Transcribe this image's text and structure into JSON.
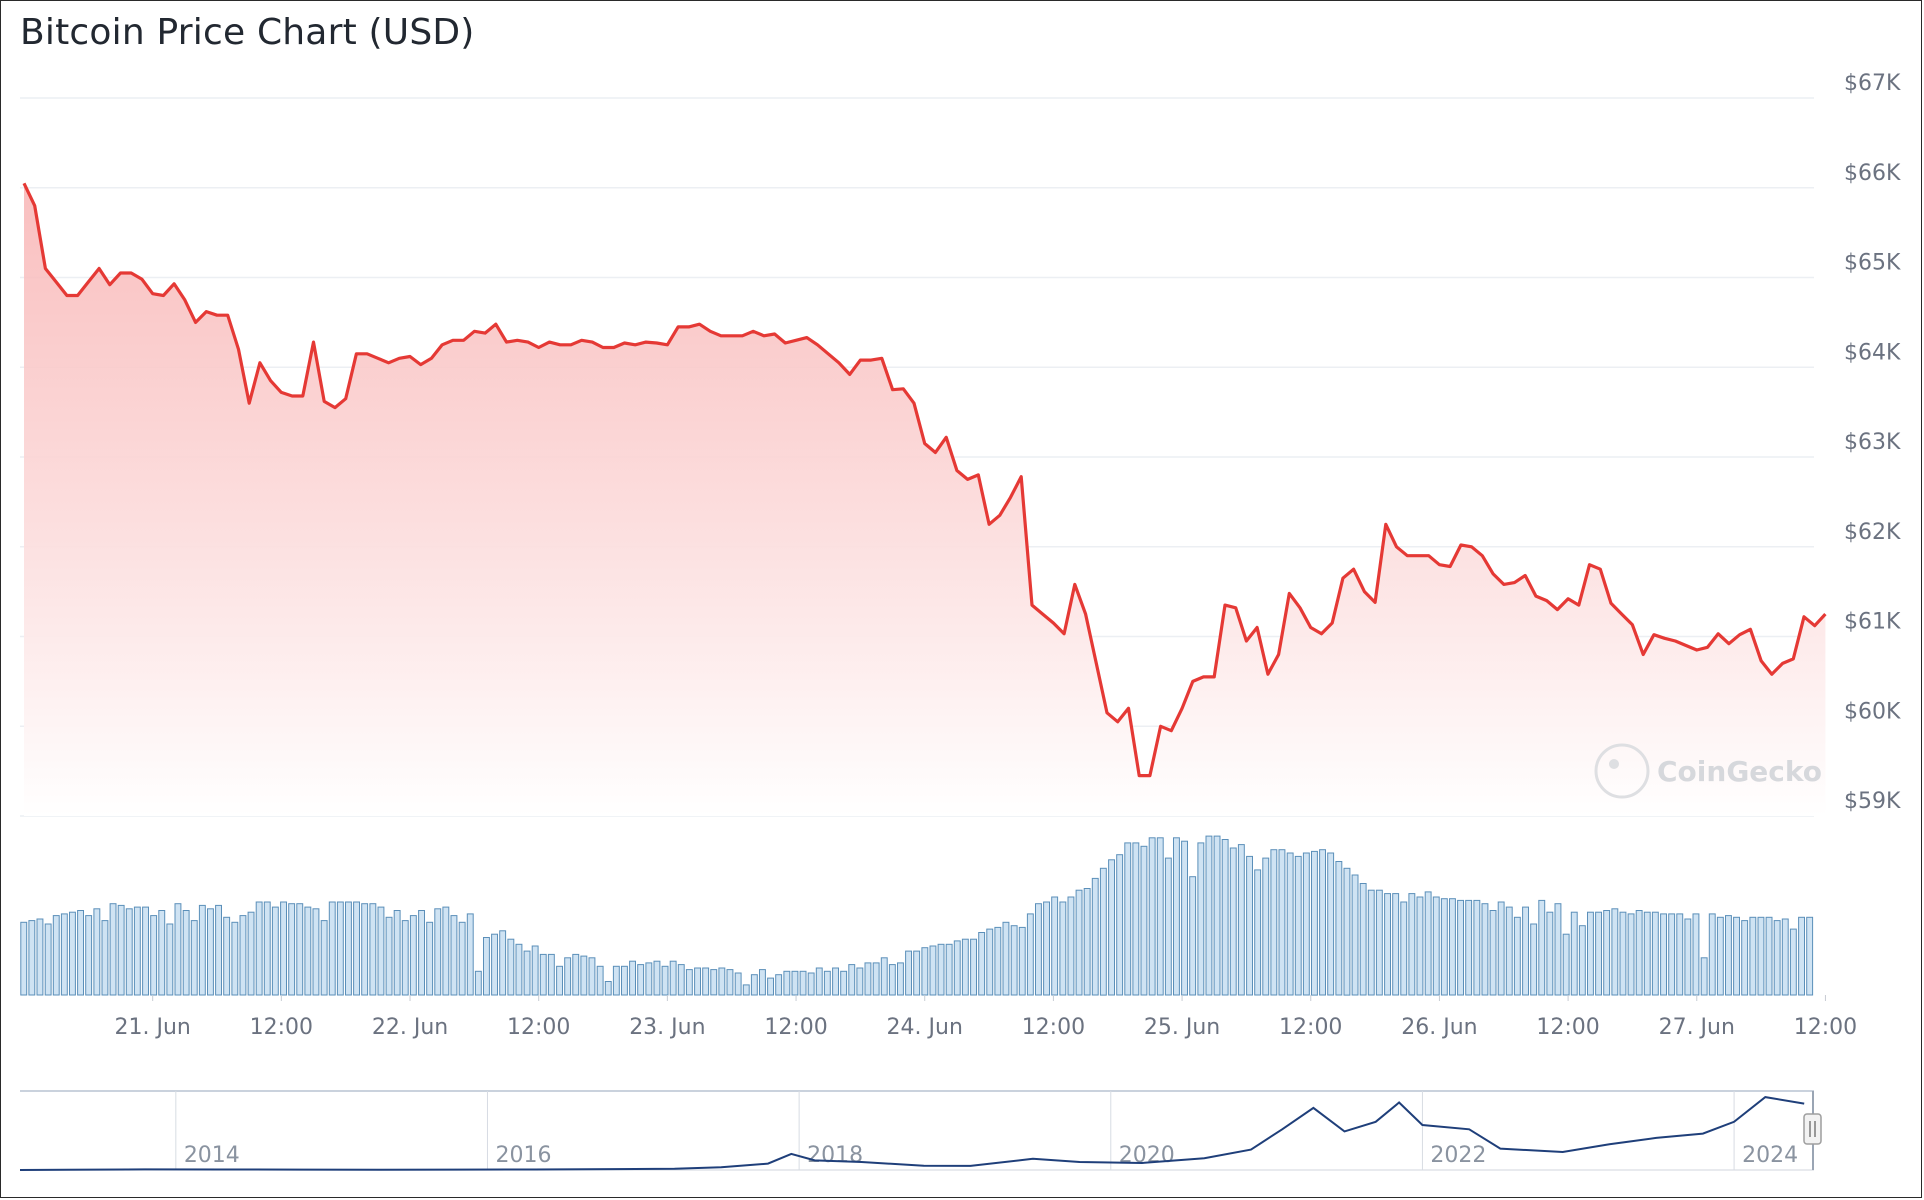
{
  "title": "Bitcoin Price Chart (USD)",
  "watermark": "CoinGecko",
  "colors": {
    "line": "#e53935",
    "area_top": "#f8b4b4",
    "area_bottom": "#ffffff",
    "volume_fill": "#cfe3f3",
    "volume_stroke": "#5b8fb9",
    "grid": "#eceff3",
    "axis_text": "#6b7280",
    "navigator_line": "#1f3f7a"
  },
  "chart_data": [
    {
      "type": "area",
      "title": "Bitcoin Price Chart (USD)",
      "ylabel": "",
      "xlabel": "",
      "y_axis_position": "right",
      "ylim": [
        59000,
        67000
      ],
      "yticks": [
        "$59K",
        "$60K",
        "$61K",
        "$62K",
        "$63K",
        "$64K",
        "$65K",
        "$66K",
        "$67K"
      ],
      "xlim_hours": [
        0,
        166
      ],
      "xticks": [
        {
          "label": "21. Jun",
          "hour": 12
        },
        {
          "label": "12:00",
          "hour": 24
        },
        {
          "label": "22. Jun",
          "hour": 36
        },
        {
          "label": "12:00",
          "hour": 48
        },
        {
          "label": "23. Jun",
          "hour": 60
        },
        {
          "label": "12:00",
          "hour": 72
        },
        {
          "label": "24. Jun",
          "hour": 84
        },
        {
          "label": "12:00",
          "hour": 96
        },
        {
          "label": "25. Jun",
          "hour": 108
        },
        {
          "label": "12:00",
          "hour": 120
        },
        {
          "label": "26. Jun",
          "hour": 132
        },
        {
          "label": "12:00",
          "hour": 144
        },
        {
          "label": "27. Jun",
          "hour": 156
        },
        {
          "label": "12:00",
          "hour": 168
        }
      ],
      "x_unit": "hours since 20 Jun 12:00",
      "series": [
        {
          "name": "",
          "points": [
            [
              0,
              66050
            ],
            [
              1,
              65800
            ],
            [
              2,
              65100
            ],
            [
              3,
              64950
            ],
            [
              4,
              64800
            ],
            [
              5,
              64800
            ],
            [
              6,
              64950
            ],
            [
              7,
              65100
            ],
            [
              8,
              64920
            ],
            [
              9,
              65050
            ],
            [
              10,
              65050
            ],
            [
              11,
              64980
            ],
            [
              12,
              64820
            ],
            [
              13,
              64800
            ],
            [
              14,
              64930
            ],
            [
              15,
              64750
            ],
            [
              16,
              64500
            ],
            [
              17,
              64620
            ],
            [
              18,
              64580
            ],
            [
              19,
              64580
            ],
            [
              20,
              64200
            ],
            [
              21,
              63600
            ],
            [
              22,
              64050
            ],
            [
              23,
              63850
            ],
            [
              24,
              63720
            ],
            [
              25,
              63680
            ],
            [
              26,
              63680
            ],
            [
              27,
              64280
            ],
            [
              28,
              63620
            ],
            [
              29,
              63550
            ],
            [
              30,
              63650
            ],
            [
              31,
              64150
            ],
            [
              32,
              64150
            ],
            [
              33,
              64100
            ],
            [
              34,
              64050
            ],
            [
              35,
              64100
            ],
            [
              36,
              64120
            ],
            [
              37,
              64030
            ],
            [
              38,
              64100
            ],
            [
              39,
              64250
            ],
            [
              40,
              64300
            ],
            [
              41,
              64300
            ],
            [
              42,
              64400
            ],
            [
              43,
              64380
            ],
            [
              44,
              64480
            ],
            [
              45,
              64280
            ],
            [
              46,
              64300
            ],
            [
              47,
              64280
            ],
            [
              48,
              64220
            ],
            [
              49,
              64280
            ],
            [
              50,
              64250
            ],
            [
              51,
              64250
            ],
            [
              52,
              64300
            ],
            [
              53,
              64280
            ],
            [
              54,
              64220
            ],
            [
              55,
              64220
            ],
            [
              56,
              64270
            ],
            [
              57,
              64250
            ],
            [
              58,
              64280
            ],
            [
              59,
              64270
            ],
            [
              60,
              64250
            ],
            [
              61,
              64450
            ],
            [
              62,
              64450
            ],
            [
              63,
              64480
            ],
            [
              64,
              64400
            ],
            [
              65,
              64350
            ],
            [
              66,
              64350
            ],
            [
              67,
              64350
            ],
            [
              68,
              64400
            ],
            [
              69,
              64350
            ],
            [
              70,
              64370
            ],
            [
              71,
              64270
            ],
            [
              72,
              64300
            ],
            [
              73,
              64330
            ],
            [
              74,
              64250
            ],
            [
              75,
              64150
            ],
            [
              76,
              64050
            ],
            [
              77,
              63920
            ],
            [
              78,
              64080
            ],
            [
              79,
              64080
            ],
            [
              80,
              64100
            ],
            [
              81,
              63750
            ],
            [
              82,
              63760
            ],
            [
              83,
              63600
            ],
            [
              84,
              63150
            ],
            [
              85,
              63050
            ],
            [
              86,
              63220
            ],
            [
              87,
              62850
            ],
            [
              88,
              62750
            ],
            [
              89,
              62800
            ],
            [
              90,
              62250
            ],
            [
              91,
              62350
            ],
            [
              92,
              62550
            ],
            [
              93,
              62780
            ],
            [
              94,
              61350
            ],
            [
              95,
              61250
            ],
            [
              96,
              61150
            ],
            [
              97,
              61030
            ],
            [
              98,
              61580
            ],
            [
              99,
              61250
            ],
            [
              100,
              60700
            ],
            [
              101,
              60150
            ],
            [
              102,
              60050
            ],
            [
              103,
              60200
            ],
            [
              104,
              59450
            ],
            [
              105,
              59450
            ],
            [
              106,
              60000
            ],
            [
              107,
              59950
            ],
            [
              108,
              60200
            ],
            [
              109,
              60500
            ],
            [
              110,
              60550
            ],
            [
              111,
              60550
            ],
            [
              112,
              61350
            ],
            [
              113,
              61320
            ],
            [
              114,
              60950
            ],
            [
              115,
              61100
            ],
            [
              116,
              60580
            ],
            [
              117,
              60800
            ],
            [
              118,
              61480
            ],
            [
              119,
              61320
            ],
            [
              120,
              61100
            ],
            [
              121,
              61030
            ],
            [
              122,
              61150
            ],
            [
              123,
              61650
            ],
            [
              124,
              61750
            ],
            [
              125,
              61500
            ],
            [
              126,
              61380
            ],
            [
              127,
              62250
            ],
            [
              128,
              62000
            ],
            [
              129,
              61900
            ],
            [
              130,
              61900
            ],
            [
              131,
              61900
            ],
            [
              132,
              61800
            ],
            [
              133,
              61780
            ],
            [
              134,
              62020
            ],
            [
              135,
              62000
            ],
            [
              136,
              61900
            ],
            [
              137,
              61700
            ],
            [
              138,
              61580
            ],
            [
              139,
              61600
            ],
            [
              140,
              61680
            ],
            [
              141,
              61450
            ],
            [
              142,
              61400
            ],
            [
              143,
              61300
            ],
            [
              144,
              61420
            ],
            [
              145,
              61350
            ],
            [
              146,
              61800
            ],
            [
              147,
              61750
            ],
            [
              148,
              61370
            ],
            [
              149,
              61250
            ],
            [
              150,
              61130
            ],
            [
              151,
              60800
            ],
            [
              152,
              61020
            ],
            [
              153,
              60980
            ],
            [
              154,
              60950
            ],
            [
              155,
              60900
            ],
            [
              156,
              60850
            ],
            [
              157,
              60880
            ],
            [
              158,
              61030
            ],
            [
              159,
              60920
            ],
            [
              160,
              61020
            ],
            [
              161,
              61080
            ],
            [
              162,
              60730
            ],
            [
              163,
              60580
            ],
            [
              164,
              60700
            ],
            [
              165,
              60750
            ],
            [
              166,
              61220
            ],
            [
              167,
              61120
            ],
            [
              168,
              61250
            ]
          ]
        },
        {
          "name": "",
          "type": "bar",
          "description_key": "volume",
          "relative_values": [
            0.43,
            0.44,
            0.45,
            0.42,
            0.47,
            0.48,
            0.49,
            0.5,
            0.47,
            0.51,
            0.44,
            0.54,
            0.53,
            0.51,
            0.52,
            0.52,
            0.47,
            0.5,
            0.42,
            0.54,
            0.5,
            0.44,
            0.53,
            0.51,
            0.53,
            0.46,
            0.43,
            0.47,
            0.49,
            0.55,
            0.55,
            0.52,
            0.55,
            0.54,
            0.54,
            0.52,
            0.51,
            0.44,
            0.55,
            0.55,
            0.55,
            0.55,
            0.54,
            0.54,
            0.52,
            0.46,
            0.5,
            0.44,
            0.47,
            0.5,
            0.43,
            0.51,
            0.52,
            0.47,
            0.43,
            0.48,
            0.14,
            0.34,
            0.36,
            0.38,
            0.33,
            0.3,
            0.26,
            0.29,
            0.24,
            0.24,
            0.17,
            0.22,
            0.24,
            0.23,
            0.22,
            0.17,
            0.08,
            0.17,
            0.17,
            0.2,
            0.18,
            0.19,
            0.2,
            0.17,
            0.2,
            0.18,
            0.15,
            0.16,
            0.16,
            0.15,
            0.16,
            0.15,
            0.13,
            0.06,
            0.12,
            0.15,
            0.1,
            0.12,
            0.14,
            0.14,
            0.14,
            0.13,
            0.16,
            0.14,
            0.16,
            0.14,
            0.18,
            0.16,
            0.19,
            0.19,
            0.22,
            0.18,
            0.19,
            0.26,
            0.26,
            0.28,
            0.29,
            0.3,
            0.3,
            0.32,
            0.33,
            0.33,
            0.37,
            0.39,
            0.4,
            0.43,
            0.41,
            0.4,
            0.48,
            0.54,
            0.55,
            0.58,
            0.55,
            0.58,
            0.62,
            0.63,
            0.69,
            0.75,
            0.8,
            0.83,
            0.9,
            0.9,
            0.88,
            0.93,
            0.93,
            0.81,
            0.93,
            0.91,
            0.7,
            0.9,
            0.94,
            0.94,
            0.92,
            0.87,
            0.89,
            0.82,
            0.74,
            0.81,
            0.86,
            0.86,
            0.84,
            0.82,
            0.84,
            0.85,
            0.86,
            0.84,
            0.79,
            0.75,
            0.71,
            0.66,
            0.62,
            0.62,
            0.6,
            0.6,
            0.55,
            0.6,
            0.58,
            0.61,
            0.58,
            0.57,
            0.57,
            0.56,
            0.56,
            0.56,
            0.54,
            0.5,
            0.55,
            0.52,
            0.46,
            0.52,
            0.42,
            0.56,
            0.49,
            0.54,
            0.36,
            0.49,
            0.41,
            0.49,
            0.49,
            0.5,
            0.51,
            0.49,
            0.48,
            0.5,
            0.49,
            0.49,
            0.48,
            0.48,
            0.48,
            0.45,
            0.48,
            0.22,
            0.48,
            0.46,
            0.47,
            0.46,
            0.44,
            0.46,
            0.46,
            0.46,
            0.44,
            0.45,
            0.39,
            0.46,
            0.46
          ]
        }
      ]
    },
    {
      "type": "line",
      "description_key": "navigator",
      "xticks": [
        "2014",
        "2016",
        "2018",
        "2020",
        "2022",
        "2024"
      ],
      "x": [
        2013.3,
        2013.8,
        2014.3,
        2014.8,
        2015.3,
        2015.8,
        2016.3,
        2016.8,
        2017.2,
        2017.5,
        2017.8,
        2017.95,
        2018.1,
        2018.4,
        2018.8,
        2019.1,
        2019.5,
        2019.8,
        2020.2,
        2020.6,
        2020.9,
        2021.1,
        2021.3,
        2021.5,
        2021.7,
        2021.85,
        2022.0,
        2022.3,
        2022.5,
        2022.9,
        2023.2,
        2023.5,
        2023.8,
        2024.0,
        2024.2,
        2024.45
      ],
      "values": [
        150,
        600,
        500,
        350,
        250,
        400,
        450,
        800,
        1200,
        2500,
        6000,
        15000,
        9000,
        7500,
        4000,
        3800,
        10500,
        7500,
        6500,
        11000,
        19000,
        38000,
        58000,
        36000,
        45000,
        63000,
        42000,
        38000,
        20000,
        16800,
        24000,
        30000,
        34000,
        45000,
        68000,
        62000
      ]
    }
  ]
}
